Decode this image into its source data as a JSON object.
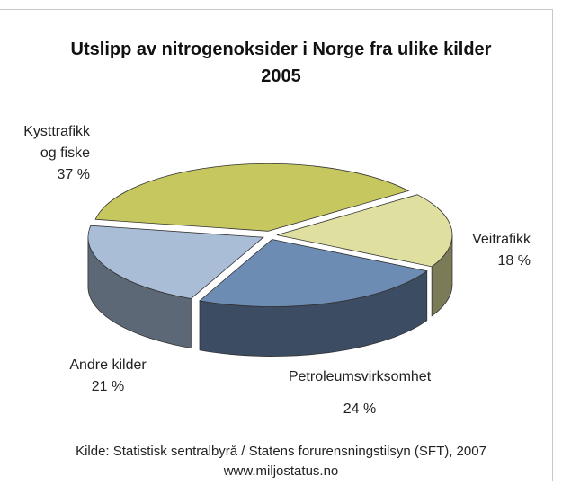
{
  "chart_data": {
    "type": "pie3d",
    "title": "Utslipp av nitrogenoksider i Norge fra ulike kilder",
    "subtitle": "2005",
    "categories": [
      "Kysttrafikk og fiske",
      "Veitrafikk",
      "Petroleumsvirksomhet",
      "Andre kilder"
    ],
    "values": [
      37,
      18,
      24,
      21
    ],
    "value_labels": [
      "37 %",
      "18 %",
      "24 %",
      "21 %"
    ],
    "colors": [
      "#c6c75e",
      "#dfdf9f",
      "#6d8cb4",
      "#a9bdd6"
    ],
    "source": [
      "Kilde: Statistisk sentralbyrå / Statens forurensningstilsyn (SFT), 2007",
      "www.miljostatus.no"
    ]
  }
}
